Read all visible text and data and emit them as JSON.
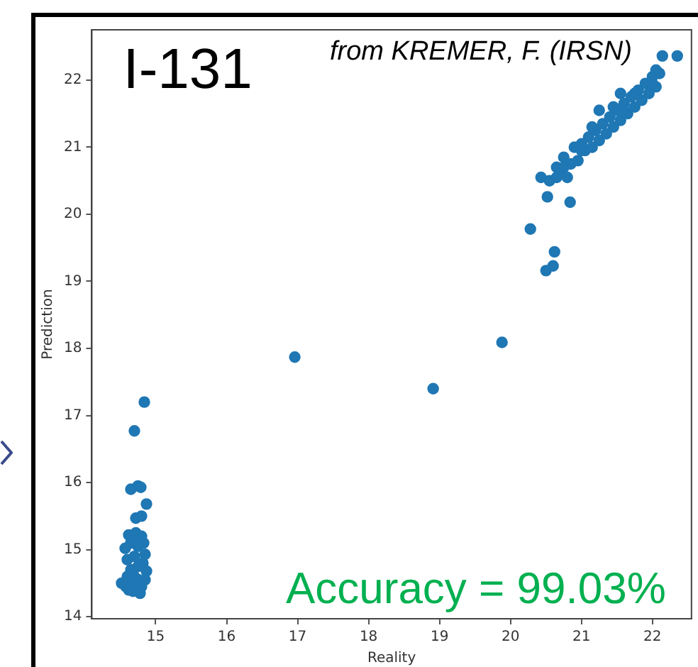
{
  "chart_data": {
    "type": "scatter",
    "title": "I-131",
    "subtitle": "from KREMER, F. (IRSN)",
    "xlabel": "Reality",
    "ylabel": "Prediction",
    "annotations": [
      "Accuracy = 99.03%"
    ],
    "x": [
      14.52,
      14.58,
      14.62,
      14.68,
      14.78,
      14.8,
      14.85,
      14.87,
      14.82,
      14.85,
      14.83,
      14.8,
      14.72,
      14.62,
      14.57,
      14.6,
      14.65,
      14.7,
      14.75,
      14.7,
      14.75,
      14.65,
      14.72,
      14.68,
      14.76,
      14.6,
      14.72,
      14.8,
      14.87,
      14.65,
      14.75,
      14.79,
      14.7,
      14.84,
      16.96,
      18.91,
      19.88,
      20.28,
      20.62,
      20.5,
      20.6,
      20.52,
      20.84,
      20.43,
      20.55,
      20.65,
      20.7,
      20.75,
      20.8,
      20.85,
      20.9,
      20.95,
      21.0,
      21.05,
      21.1,
      21.15,
      21.2,
      21.25,
      21.35,
      21.4,
      21.45,
      21.5,
      21.55,
      21.6,
      21.65,
      21.7,
      21.75,
      21.8,
      21.85,
      21.9,
      21.95,
      22.0,
      22.05,
      22.1,
      22.0,
      21.6,
      21.3,
      21.0,
      20.75,
      20.65,
      21.15,
      21.45,
      21.75,
      22.14,
      22.35,
      22.05,
      21.55,
      21.25
    ],
    "values": [
      14.5,
      14.45,
      14.4,
      14.38,
      14.35,
      14.45,
      14.55,
      14.68,
      14.8,
      14.93,
      15.1,
      15.2,
      15.25,
      15.22,
      15.02,
      14.85,
      14.7,
      14.6,
      14.75,
      14.9,
      15.05,
      15.1,
      15.15,
      14.5,
      14.55,
      14.6,
      15.47,
      15.5,
      15.68,
      15.9,
      15.95,
      15.93,
      16.77,
      17.2,
      17.87,
      17.4,
      18.09,
      19.78,
      19.44,
      19.16,
      19.23,
      20.26,
      20.18,
      20.55,
      20.5,
      20.7,
      20.6,
      20.85,
      20.55,
      20.75,
      21.0,
      20.8,
      21.05,
      20.95,
      21.15,
      21.0,
      21.25,
      21.1,
      21.2,
      21.45,
      21.3,
      21.55,
      21.4,
      21.65,
      21.5,
      21.75,
      21.6,
      21.85,
      21.7,
      21.95,
      21.8,
      22.05,
      21.9,
      22.1,
      21.95,
      21.55,
      21.35,
      20.95,
      20.7,
      20.55,
      21.3,
      21.6,
      21.8,
      22.36,
      22.36,
      22.15,
      21.8,
      21.55
    ],
    "color": "#1f77b4",
    "marker": "circle",
    "grid": false,
    "xlim": [
      14.1,
      22.55
    ],
    "ylim": [
      13.97,
      22.75
    ],
    "xticks": [
      15,
      16,
      17,
      18,
      19,
      20,
      21,
      22
    ],
    "yticks": [
      14,
      15,
      16,
      17,
      18,
      19,
      20,
      21,
      22
    ]
  }
}
